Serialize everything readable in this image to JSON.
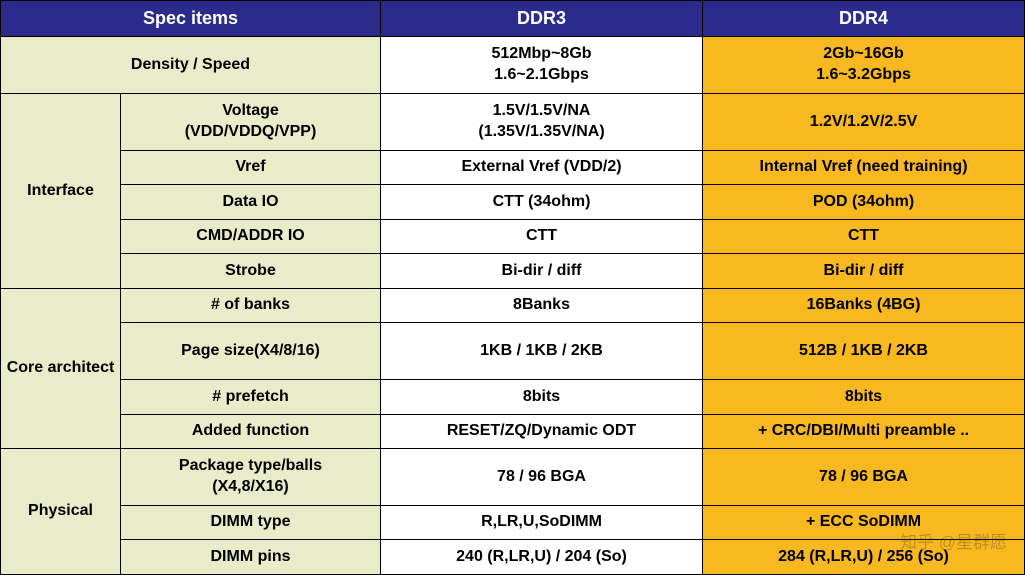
{
  "colors": {
    "header_bg": "#2b2b8c",
    "header_fg": "#ffffff",
    "cat_bg": "#e8ecc9",
    "item_bg": "#e8ecc9",
    "ddr3_bg": "#ffffff",
    "ddr4_bg": "#f7b820",
    "cell_fg": "#000000",
    "cat_fg": "#000000",
    "border": "#000000"
  },
  "fonts": {
    "header_weight": "700",
    "cat_weight": "700",
    "item_weight": "700",
    "ddr_weight": "700"
  },
  "headers": {
    "spec": "Spec items",
    "ddr3": "DDR3",
    "ddr4": "DDR4"
  },
  "watermark": "知乎 @星群愿",
  "rows": [
    {
      "cat": "Density / Speed",
      "cat_span": 1,
      "cat_full": true,
      "item": "",
      "ddr3": [
        "512Mbp~8Gb",
        "1.6~2.1Gbps"
      ],
      "ddr4": [
        "2Gb~16Gb",
        "1.6~3.2Gbps"
      ],
      "tall": true
    },
    {
      "cat": "Interface",
      "cat_span": 5,
      "item": [
        "Voltage",
        "(VDD/VDDQ/VPP)"
      ],
      "ddr3": [
        "1.5V/1.5V/NA",
        "(1.35V/1.35V/NA)"
      ],
      "ddr4": "1.2V/1.2V/2.5V",
      "tall": true
    },
    {
      "item": "Vref",
      "ddr3": "External Vref (VDD/2)",
      "ddr4": "Internal Vref (need training)"
    },
    {
      "item": "Data IO",
      "ddr3": "CTT (34ohm)",
      "ddr4": "POD (34ohm)"
    },
    {
      "item": "CMD/ADDR IO",
      "ddr3": "CTT",
      "ddr4": "CTT"
    },
    {
      "item": "Strobe",
      "ddr3": "Bi-dir / diff",
      "ddr4": "Bi-dir / diff"
    },
    {
      "cat": "Core architect",
      "cat_span": 4,
      "item": "# of banks",
      "ddr3": "8Banks",
      "ddr4": "16Banks (4BG)"
    },
    {
      "item": "Page size(X4/8/16)",
      "ddr3": "1KB / 1KB / 2KB",
      "ddr4": "512B / 1KB / 2KB",
      "tall": true
    },
    {
      "item": "# prefetch",
      "ddr3": "8bits",
      "ddr4": "8bits"
    },
    {
      "item": "Added function",
      "ddr3": "RESET/ZQ/Dynamic ODT",
      "ddr4": "+ CRC/DBI/Multi preamble .."
    },
    {
      "cat": "Physical",
      "cat_span": 3,
      "item": [
        "Package type/balls",
        "(X4,8/X16)"
      ],
      "ddr3": "78 / 96 BGA",
      "ddr4": "78 / 96 BGA",
      "tall": true
    },
    {
      "item": "DIMM type",
      "ddr3": "R,LR,U,SoDIMM",
      "ddr4": "+ ECC SoDIMM"
    },
    {
      "item": "DIMM pins",
      "ddr3": "240 (R,LR,U) / 204 (So)",
      "ddr4": "284 (R,LR,U) / 256 (So)"
    }
  ]
}
